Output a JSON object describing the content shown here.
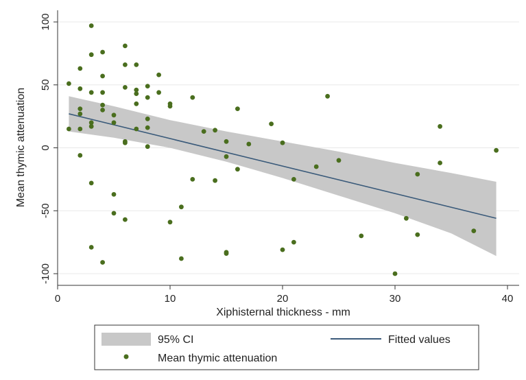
{
  "chart_data": {
    "type": "scatter",
    "title": "",
    "xlabel": "Xiphisternal thickness - mm",
    "ylabel": "Mean thymic attenuation",
    "xlim": [
      0,
      40
    ],
    "ylim": [
      -100,
      100
    ],
    "x_ticks": [
      0,
      10,
      20,
      30,
      40
    ],
    "y_ticks": [
      100,
      50,
      0,
      -50,
      -100
    ],
    "x_tick_labels": [
      "0",
      "10",
      "20",
      "30",
      "40"
    ],
    "y_tick_labels": [
      "100",
      "50",
      "0",
      "-50",
      "-100"
    ],
    "grid": "horizontal",
    "legend_position": "bottom",
    "legend": {
      "ci_label": "95% CI",
      "fit_label": "Fitted values",
      "points_label": "Mean thymic attenuation"
    },
    "colors": {
      "points": "#4a6e1e",
      "fit_line": "#3a5a7a",
      "ci_band": "#c8c8c8",
      "grid": "#e8e8e8"
    },
    "fitted_line": {
      "x": [
        1,
        39
      ],
      "y": [
        27,
        -56
      ]
    },
    "ci_band": {
      "x": [
        1,
        5,
        10,
        15,
        20,
        25,
        30,
        35,
        39
      ],
      "lower": [
        13,
        8,
        0,
        -11,
        -24,
        -38,
        -52,
        -68,
        -86
      ],
      "upper": [
        41,
        33,
        22,
        13,
        5,
        -3,
        -12,
        -20,
        -27
      ]
    },
    "series": [
      {
        "name": "Mean thymic attenuation",
        "points": [
          [
            1,
            51
          ],
          [
            1,
            15
          ],
          [
            2,
            63
          ],
          [
            2,
            47
          ],
          [
            2,
            31
          ],
          [
            2,
            27
          ],
          [
            2,
            15
          ],
          [
            2,
            -6
          ],
          [
            3,
            97
          ],
          [
            3,
            74
          ],
          [
            3,
            44
          ],
          [
            3,
            20
          ],
          [
            3,
            17
          ],
          [
            3,
            -28
          ],
          [
            3,
            -79
          ],
          [
            4,
            76
          ],
          [
            4,
            57
          ],
          [
            4,
            44
          ],
          [
            4,
            34
          ],
          [
            4,
            30
          ],
          [
            4,
            -91
          ],
          [
            5,
            26
          ],
          [
            5,
            20
          ],
          [
            5,
            -37
          ],
          [
            5,
            -52
          ],
          [
            6,
            81
          ],
          [
            6,
            66
          ],
          [
            6,
            48
          ],
          [
            6,
            5
          ],
          [
            6,
            4
          ],
          [
            6,
            -57
          ],
          [
            7,
            66
          ],
          [
            7,
            46
          ],
          [
            7,
            43
          ],
          [
            7,
            35
          ],
          [
            7,
            15
          ],
          [
            8,
            49
          ],
          [
            8,
            40
          ],
          [
            8,
            23
          ],
          [
            8,
            16
          ],
          [
            8,
            1
          ],
          [
            9,
            58
          ],
          [
            9,
            44
          ],
          [
            10,
            35
          ],
          [
            10,
            33
          ],
          [
            10,
            -59
          ],
          [
            11,
            -47
          ],
          [
            11,
            -88
          ],
          [
            12,
            40
          ],
          [
            12,
            -25
          ],
          [
            13,
            13
          ],
          [
            14,
            14
          ],
          [
            14,
            -26
          ],
          [
            15,
            5
          ],
          [
            15,
            -7
          ],
          [
            15,
            -83
          ],
          [
            15,
            -84
          ],
          [
            16,
            31
          ],
          [
            16,
            -17
          ],
          [
            17,
            3
          ],
          [
            19,
            19
          ],
          [
            20,
            4
          ],
          [
            20,
            -81
          ],
          [
            21,
            -25
          ],
          [
            21,
            -75
          ],
          [
            23,
            -15
          ],
          [
            24,
            41
          ],
          [
            25,
            -10
          ],
          [
            27,
            -70
          ],
          [
            30,
            -100
          ],
          [
            31,
            -56
          ],
          [
            32,
            -21
          ],
          [
            32,
            -69
          ],
          [
            34,
            17
          ],
          [
            34,
            -12
          ],
          [
            37,
            -66
          ],
          [
            39,
            -2
          ]
        ]
      }
    ]
  }
}
